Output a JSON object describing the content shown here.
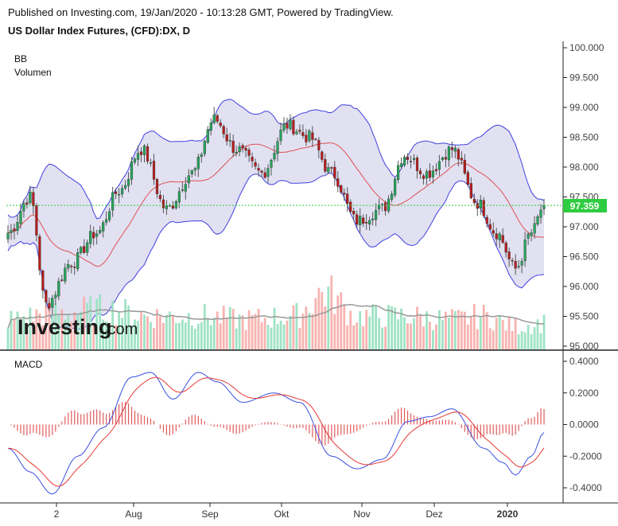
{
  "header": {
    "published": "Published on Investing.com, 19/Jan/2020 - 10:13:28 GMT, Powered by TradingView.",
    "instrument": "US Dollar Index Futures, (CFD):DX, D"
  },
  "legend": {
    "bb": "BB",
    "volume": "Volumen",
    "macd": "MACD"
  },
  "watermark": {
    "brand": "Investing",
    "suffix": ".com"
  },
  "colors": {
    "up": "#26a65b",
    "down": "#b71c1c",
    "vol_up": "#9fe3c4",
    "vol_down": "#f7b3b0",
    "band": "#4040e0",
    "band_fill": "#e1e1f2",
    "basis": "#e05050",
    "macd_line": "#3a4fe0",
    "signal_line": "#e53935",
    "hist": "#e05a5a",
    "last_price": "#2ecc40",
    "vol_ma": "#999999"
  },
  "price_axis": {
    "ticks": [
      "100.000",
      "99.500",
      "99.000",
      "98.500",
      "98.000",
      "97.500",
      "97.000",
      "96.500",
      "96.000",
      "95.500",
      "95.000"
    ]
  },
  "macd_axis": {
    "ticks": [
      "0.4000",
      "0.2000",
      "0.0000",
      "-0.2000",
      "-0.4000"
    ]
  },
  "x_axis": {
    "labels": [
      "2",
      "Aug",
      "Sep",
      "Okt",
      "Nov",
      "Dez",
      "2020"
    ]
  },
  "last_price": {
    "label": "97.359",
    "value": 97.359
  },
  "chart_data": {
    "type": "candlestick",
    "title": "US Dollar Index Futures, (CFD):DX, D",
    "indicators": [
      "Bollinger Bands",
      "Volume",
      "MACD"
    ],
    "price_range": [
      95.0,
      100.0
    ],
    "macd_range": [
      -0.45,
      0.45
    ],
    "close_keypoints": {
      "days": [
        0,
        7,
        12,
        20,
        28,
        35,
        42,
        50,
        58,
        65,
        72,
        80,
        88,
        95,
        102,
        110,
        118,
        125,
        132,
        140,
        148,
        154,
        160,
        165,
        169
      ],
      "close": [
        96.9,
        97.5,
        95.7,
        96.4,
        96.9,
        97.6,
        98.3,
        97.3,
        97.9,
        98.8,
        98.3,
        97.9,
        98.7,
        98.5,
        97.9,
        97.1,
        97.3,
        98.2,
        97.9,
        98.3,
        97.4,
        96.9,
        96.3,
        96.9,
        97.36
      ]
    },
    "macd_keypoints": {
      "days": [
        0,
        7,
        14,
        22,
        30,
        39,
        45,
        52,
        60,
        66,
        74,
        84,
        92,
        102,
        110,
        118,
        126,
        133,
        140,
        150,
        156,
        160,
        165,
        169
      ],
      "macd": [
        -0.15,
        -0.3,
        -0.44,
        -0.2,
        -0.02,
        0.3,
        0.33,
        0.16,
        0.33,
        0.27,
        0.14,
        0.2,
        0.14,
        -0.2,
        -0.28,
        -0.22,
        0.02,
        0.05,
        0.1,
        -0.15,
        -0.24,
        -0.32,
        -0.2,
        -0.05
      ]
    },
    "volume_keypoints": {
      "days": [
        0,
        15,
        30,
        45,
        60,
        75,
        90,
        100,
        110,
        125,
        140,
        150,
        160,
        169
      ],
      "relative": [
        0.45,
        0.55,
        0.6,
        0.5,
        0.5,
        0.45,
        0.5,
        0.85,
        0.5,
        0.5,
        0.45,
        0.5,
        0.35,
        0.4
      ]
    },
    "bb_period": 20,
    "bb_stddev": 2
  }
}
